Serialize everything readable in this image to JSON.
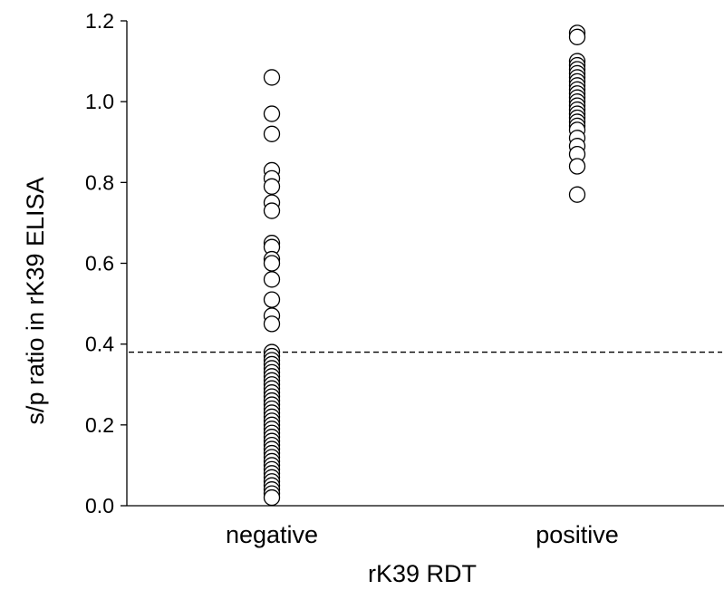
{
  "chart_data": {
    "type": "scatter",
    "xlabel": "rK39 RDT",
    "ylabel": "s/p ratio in rK39 ELISA",
    "categories": [
      "negative",
      "positive"
    ],
    "ylim": [
      0,
      1.2
    ],
    "yticks": [
      0.0,
      0.2,
      0.4,
      0.6,
      0.8,
      1.0,
      1.2
    ],
    "ytick_labels": [
      "0.0",
      "0.2",
      "0.4",
      "0.6",
      "0.8",
      "1.0",
      "1.2"
    ],
    "cutoff": 0.38,
    "grid": false,
    "legend": "none",
    "series": [
      {
        "category": "negative",
        "values": [
          1.06,
          0.97,
          0.92,
          0.83,
          0.81,
          0.79,
          0.75,
          0.73,
          0.65,
          0.64,
          0.61,
          0.6,
          0.56,
          0.51,
          0.47,
          0.45,
          0.38,
          0.37,
          0.36,
          0.35,
          0.34,
          0.33,
          0.32,
          0.31,
          0.3,
          0.29,
          0.28,
          0.27,
          0.26,
          0.25,
          0.24,
          0.23,
          0.22,
          0.21,
          0.2,
          0.19,
          0.18,
          0.17,
          0.16,
          0.15,
          0.14,
          0.13,
          0.12,
          0.11,
          0.1,
          0.09,
          0.08,
          0.07,
          0.06,
          0.05,
          0.04,
          0.03,
          0.02
        ]
      },
      {
        "category": "positive",
        "values": [
          1.17,
          1.16,
          1.1,
          1.09,
          1.08,
          1.07,
          1.06,
          1.05,
          1.04,
          1.03,
          1.02,
          1.01,
          1.0,
          0.99,
          0.98,
          0.97,
          0.96,
          0.95,
          0.94,
          0.93,
          0.91,
          0.89,
          0.87,
          0.84,
          0.77
        ]
      }
    ]
  }
}
